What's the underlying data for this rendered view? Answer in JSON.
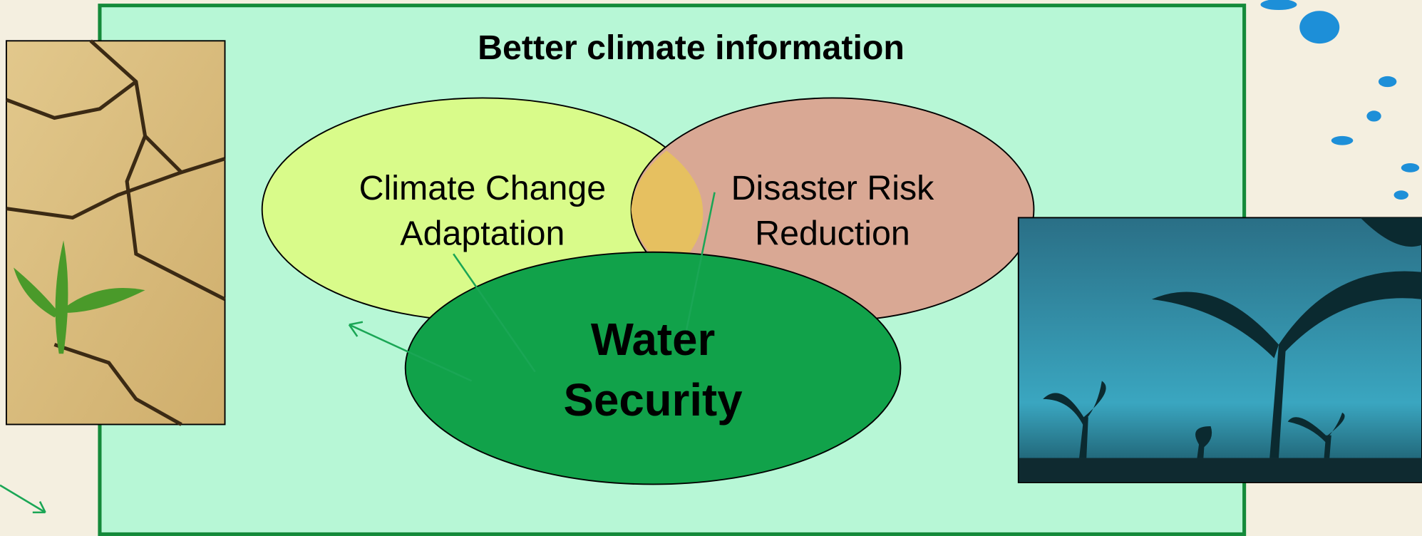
{
  "title": "Better climate information",
  "nodes": [
    {
      "label": [
        "Climate Change",
        "Adaptation"
      ]
    },
    {
      "label": [
        "Disaster Risk",
        "Reduction"
      ]
    },
    {
      "label": [
        "Water",
        "Security"
      ]
    }
  ]
}
